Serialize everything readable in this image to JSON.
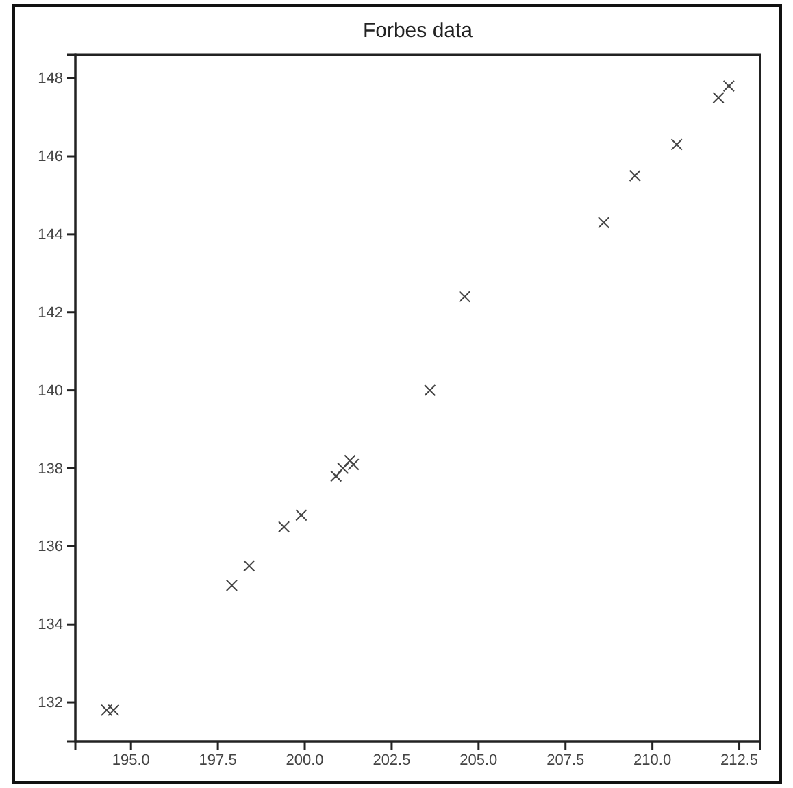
{
  "chart_data": {
    "type": "scatter",
    "title": "Forbes data",
    "marker": "cross",
    "grid": false,
    "x": [
      194.5,
      194.3,
      197.9,
      198.4,
      199.4,
      199.9,
      200.9,
      201.1,
      201.4,
      201.3,
      203.6,
      204.6,
      209.5,
      208.6,
      210.7,
      211.9,
      212.2
    ],
    "values": [
      131.8,
      131.8,
      135.0,
      135.5,
      136.5,
      136.8,
      137.8,
      138.0,
      138.1,
      138.2,
      140.0,
      142.4,
      145.5,
      144.3,
      146.3,
      147.5,
      147.8
    ],
    "color": "#444444",
    "xlim": [
      193.4,
      213.1
    ],
    "ylim": [
      131.0,
      148.6
    ],
    "xticks": [
      {
        "value": 195,
        "label": "195.0"
      },
      {
        "value": 197.5,
        "label": "197.5"
      },
      {
        "value": 200,
        "label": "200.0"
      },
      {
        "value": 202.5,
        "label": "202.5"
      },
      {
        "value": 205,
        "label": "205.0"
      },
      {
        "value": 207.5,
        "label": "207.5"
      },
      {
        "value": 210,
        "label": "210.0"
      },
      {
        "value": 212.5,
        "label": "212.5"
      }
    ],
    "yticks": [
      132,
      134,
      136,
      138,
      140,
      142,
      144,
      146,
      148
    ]
  }
}
